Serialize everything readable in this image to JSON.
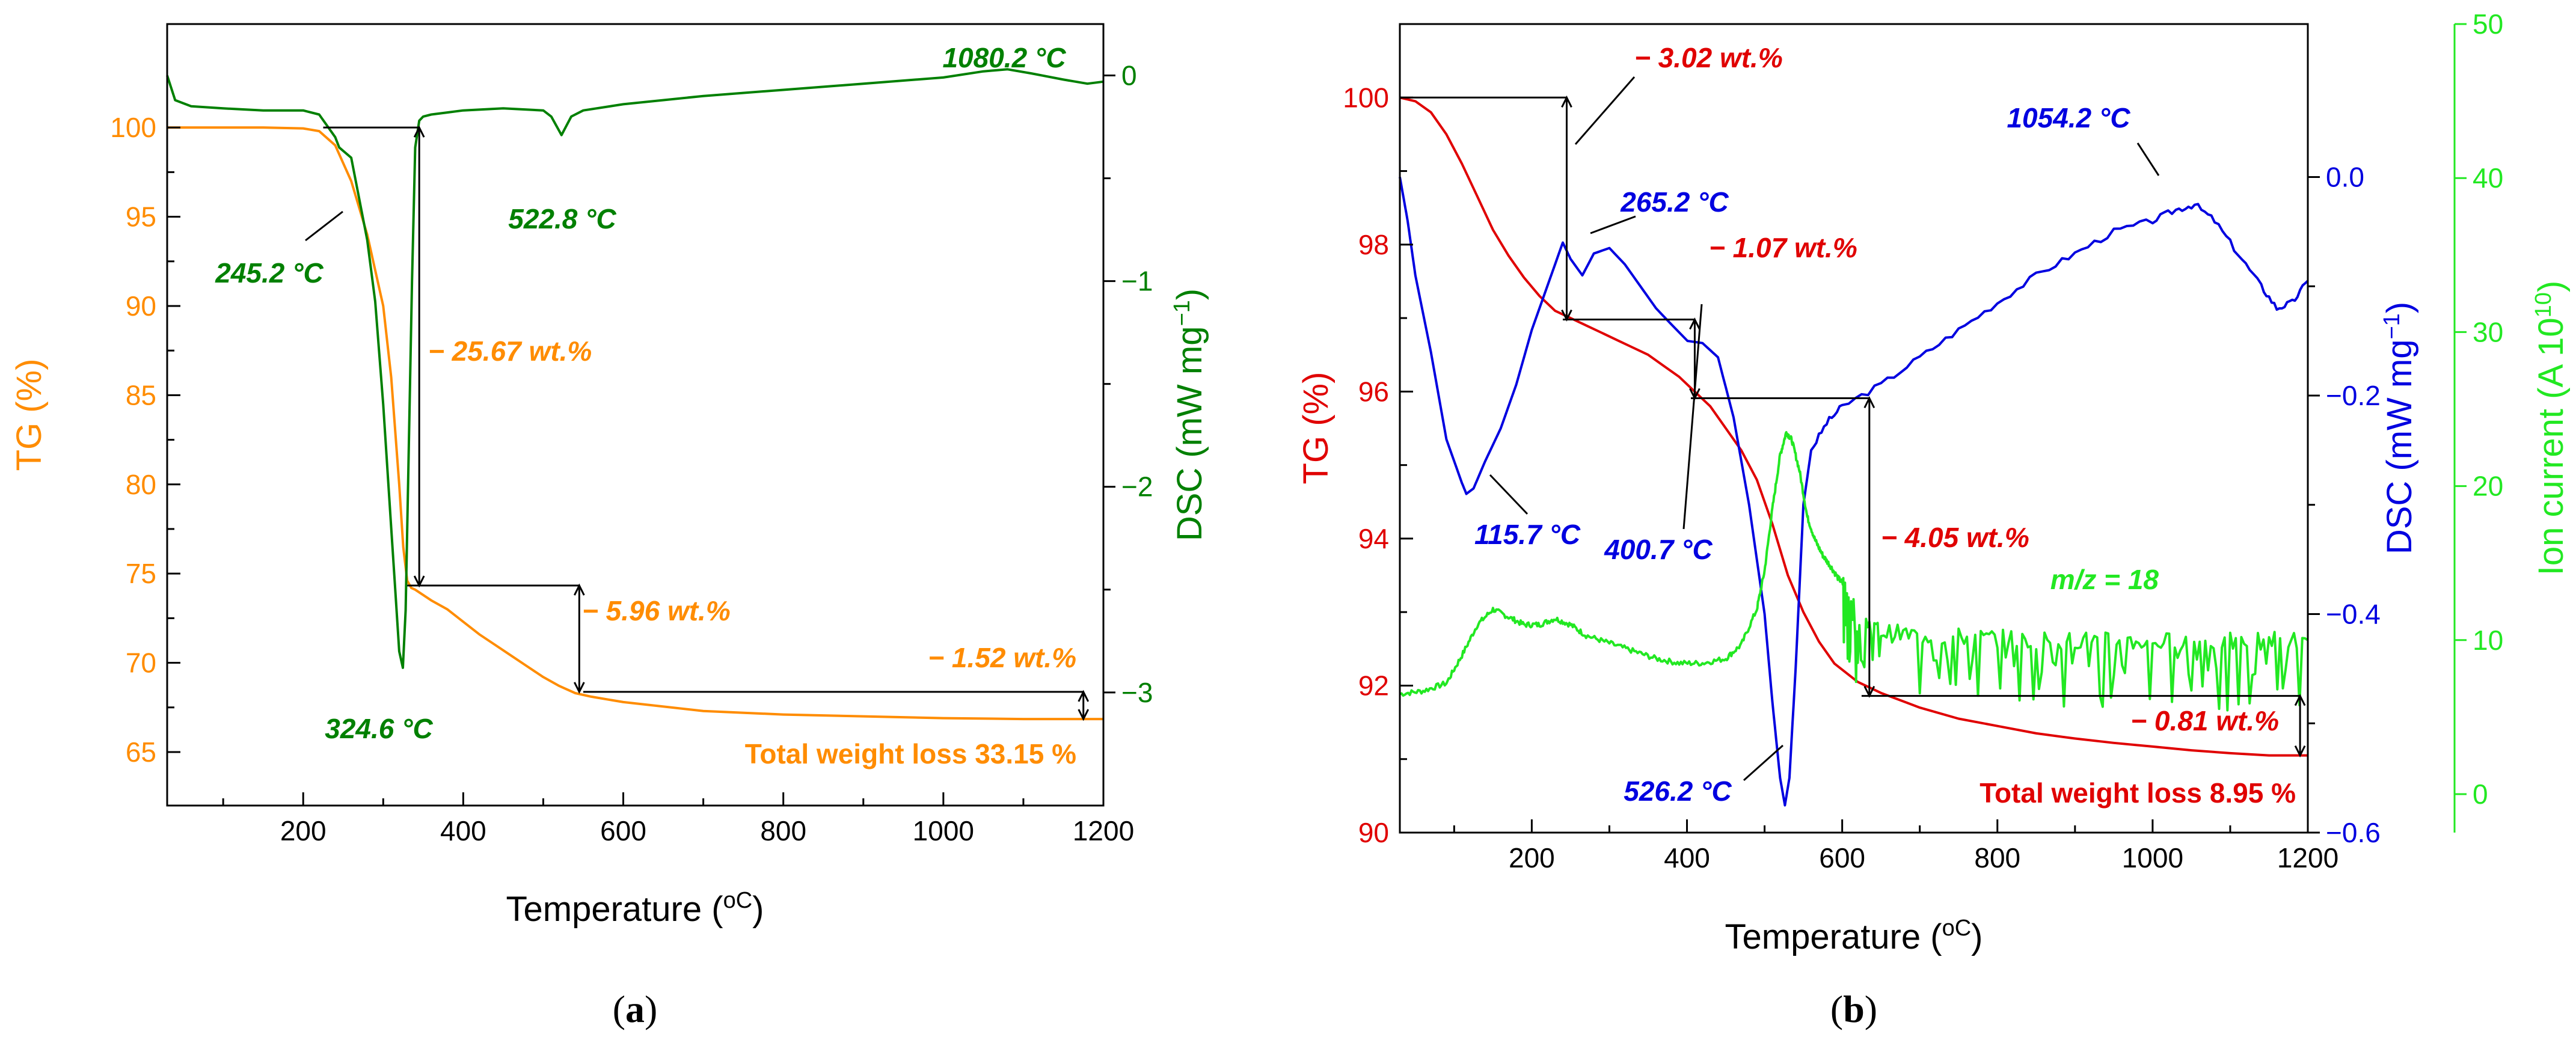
{
  "colors": {
    "tg_a": "#ff8c00",
    "dsc_a": "#008000",
    "tg_b": "#e00000",
    "dsc_b": "#0000e0",
    "ion_b": "#22e822",
    "frame": "#000000"
  },
  "chart_data": [
    {
      "type": "line",
      "panel": "(a)",
      "panel_letter": "a",
      "xlabel": "Temperature (",
      "xlabel_unit": "oC",
      "xlabel_suffix": ")",
      "xlim": [
        30,
        1200
      ],
      "xticks": [
        200,
        400,
        600,
        800,
        1000,
        1200
      ],
      "left_axis": {
        "label": "TG (%)",
        "ylim": [
          62,
          105.8
        ],
        "ticks": [
          65,
          70,
          75,
          80,
          85,
          90,
          95,
          100
        ]
      },
      "right_axis": {
        "label_pre": "DSC (mW mg",
        "label_sup": "−1",
        "label_post": ")",
        "ylim": [
          -3.55,
          0.25
        ],
        "ticks": [
          0,
          -1,
          -2,
          -3
        ],
        "tick_labels": [
          "0",
          "−1",
          "−2",
          "−3"
        ]
      },
      "series": [
        {
          "name": "TG",
          "axis": "left",
          "color_key": "tg_a",
          "x": [
            30,
            100,
            150,
            200,
            220,
            240,
            260,
            280,
            300,
            310,
            320,
            325,
            330,
            335,
            340,
            360,
            380,
            400,
            420,
            440,
            460,
            480,
            500,
            520,
            540,
            560,
            600,
            700,
            800,
            900,
            1000,
            1100,
            1200
          ],
          "y": [
            100,
            100,
            100,
            99.95,
            99.8,
            99,
            97,
            94,
            90,
            86,
            80,
            76.5,
            74.6,
            74.2,
            74.1,
            73.5,
            73,
            72.3,
            71.6,
            71,
            70.4,
            69.8,
            69.2,
            68.7,
            68.3,
            68.1,
            67.8,
            67.3,
            67.1,
            67.0,
            66.9,
            66.85,
            66.85
          ]
        },
        {
          "name": "DSC",
          "axis": "right",
          "color_key": "dsc_a",
          "x": [
            30,
            40,
            60,
            100,
            150,
            200,
            220,
            240,
            245,
            260,
            270,
            280,
            290,
            300,
            310,
            315,
            320,
            324.6,
            328,
            332,
            336,
            340,
            345,
            350,
            360,
            380,
            400,
            450,
            500,
            510,
            522.8,
            535,
            550,
            600,
            700,
            800,
            900,
            1000,
            1050,
            1080.2,
            1110,
            1150,
            1180,
            1200
          ],
          "y": [
            0,
            -0.12,
            -0.15,
            -0.16,
            -0.17,
            -0.17,
            -0.19,
            -0.3,
            -0.35,
            -0.4,
            -0.6,
            -0.8,
            -1.1,
            -1.6,
            -2.2,
            -2.5,
            -2.8,
            -2.88,
            -2.6,
            -1.8,
            -1.0,
            -0.35,
            -0.22,
            -0.2,
            -0.19,
            -0.18,
            -0.17,
            -0.16,
            -0.17,
            -0.2,
            -0.29,
            -0.2,
            -0.17,
            -0.14,
            -0.1,
            -0.07,
            -0.04,
            -0.01,
            0.02,
            0.03,
            0.01,
            -0.02,
            -0.04,
            -0.03
          ]
        }
      ],
      "annotations": [
        {
          "text": "1080.2 °C",
          "color_key": "dsc_a",
          "x": 1080.2,
          "axis": "right",
          "y": 0.03
        },
        {
          "text": "522.8 °C",
          "color_key": "dsc_a",
          "x": 522.8,
          "axis": "right",
          "y": -0.29
        },
        {
          "text": "245.2 °C",
          "color_key": "dsc_a",
          "x": 245.2,
          "axis": "right",
          "y": -0.35
        },
        {
          "text": "324.6 °C",
          "color_key": "dsc_a",
          "x": 324.6,
          "axis": "right",
          "y": -2.88
        },
        {
          "text": "− 25.67 wt.%",
          "color_key": "tg_a"
        },
        {
          "text": "− 5.96 wt.%",
          "color_key": "tg_a"
        },
        {
          "text": "− 1.52 wt.%",
          "color_key": "tg_a"
        }
      ],
      "total_text": "Total weight loss 33.15 %",
      "steps": [
        {
          "x_from": 225,
          "x_to": 345,
          "y_from": 100,
          "y_to": 74.33
        },
        {
          "x_from": 330,
          "x_to": 545,
          "y_from": 74.33,
          "y_to": 68.37
        },
        {
          "x_from": 550,
          "x_to": 1175,
          "y_from": 68.37,
          "y_to": 66.85
        }
      ]
    },
    {
      "type": "line",
      "panel": "(b)",
      "panel_letter": "b",
      "xlabel": "Temperature (",
      "xlabel_unit": "oC",
      "xlabel_suffix": ")",
      "xlim": [
        30,
        1200
      ],
      "xticks": [
        200,
        400,
        600,
        800,
        1000,
        1200
      ],
      "left_axis": {
        "label": "TG (%)",
        "ylim": [
          90,
          101
        ],
        "ticks": [
          90,
          92,
          94,
          96,
          98,
          100
        ]
      },
      "right_axis": {
        "label_pre": "DSC (mW mg",
        "label_sup": "−1",
        "label_post": ")",
        "ylim": [
          -0.6,
          0.14
        ],
        "ticks": [
          0,
          -0.2,
          -0.4,
          -0.6
        ],
        "tick_labels": [
          "0.0",
          "−0.2",
          "−0.4",
          "−0.6"
        ]
      },
      "far_axis": {
        "label_pre": "Ion current (A 10",
        "label_sup": "10",
        "label_post": ")",
        "ylim": [
          -2.5,
          50
        ],
        "ticks": [
          0,
          10,
          20,
          30,
          40,
          50
        ]
      },
      "series": [
        {
          "name": "TG",
          "axis": "left",
          "color_key": "tg_b",
          "x": [
            30,
            50,
            70,
            90,
            110,
            130,
            150,
            170,
            190,
            210,
            230,
            250,
            270,
            290,
            310,
            330,
            350,
            370,
            390,
            410,
            430,
            450,
            470,
            490,
            510,
            530,
            550,
            570,
            590,
            620,
            650,
            700,
            750,
            800,
            850,
            900,
            950,
            1000,
            1050,
            1100,
            1150,
            1200
          ],
          "y": [
            100,
            99.95,
            99.8,
            99.5,
            99.1,
            98.65,
            98.2,
            97.85,
            97.55,
            97.3,
            97.1,
            97.0,
            96.9,
            96.8,
            96.7,
            96.6,
            96.5,
            96.35,
            96.2,
            96.0,
            95.8,
            95.5,
            95.2,
            94.8,
            94.2,
            93.5,
            93.0,
            92.6,
            92.3,
            92.05,
            91.9,
            91.7,
            91.55,
            91.45,
            91.35,
            91.28,
            91.22,
            91.17,
            91.12,
            91.08,
            91.05,
            91.05
          ]
        },
        {
          "name": "DSC",
          "axis": "right",
          "color_key": "dsc_b",
          "x": [
            30,
            40,
            50,
            70,
            90,
            110,
            115.7,
            125,
            140,
            160,
            180,
            200,
            220,
            240,
            250,
            265.2,
            280,
            300,
            320,
            340,
            360,
            380,
            400.7,
            420,
            440,
            460,
            480,
            500,
            510,
            520,
            526.2,
            532,
            540,
            550,
            560,
            580,
            600,
            650,
            700,
            750,
            800,
            850,
            900,
            950,
            1000,
            1030,
            1054.2,
            1080,
            1110,
            1140,
            1160,
            1180,
            1200
          ],
          "y": [
            0.0,
            -0.04,
            -0.09,
            -0.16,
            -0.24,
            -0.28,
            -0.29,
            -0.285,
            -0.26,
            -0.23,
            -0.19,
            -0.14,
            -0.1,
            -0.06,
            -0.075,
            -0.09,
            -0.07,
            -0.065,
            -0.08,
            -0.1,
            -0.12,
            -0.135,
            -0.15,
            -0.152,
            -0.165,
            -0.22,
            -0.3,
            -0.4,
            -0.48,
            -0.55,
            -0.575,
            -0.55,
            -0.45,
            -0.3,
            -0.25,
            -0.225,
            -0.21,
            -0.19,
            -0.165,
            -0.14,
            -0.115,
            -0.09,
            -0.07,
            -0.05,
            -0.04,
            -0.03,
            -0.025,
            -0.04,
            -0.07,
            -0.1,
            -0.12,
            -0.115,
            -0.095
          ]
        },
        {
          "name": "m/z = 18",
          "axis": "far",
          "color_key": "ion_b",
          "x": [
            30,
            60,
            90,
            110,
            130,
            150,
            170,
            190,
            210,
            230,
            250,
            270,
            300,
            330,
            360,
            390,
            420,
            450,
            470,
            490,
            500,
            510,
            520,
            528,
            535,
            545,
            555,
            565,
            575,
            585,
            595,
            605,
            620,
            650,
            700,
            750,
            800,
            850,
            900,
            950,
            1000,
            1050,
            1100,
            1150,
            1200
          ],
          "y": [
            6.5,
            6.7,
            7.2,
            9.0,
            11.0,
            12.0,
            11.5,
            11.0,
            11.0,
            11.4,
            11.0,
            10.3,
            9.8,
            9.3,
            8.8,
            8.5,
            8.5,
            8.8,
            9.7,
            12.0,
            14.5,
            18.5,
            22.0,
            23.5,
            23.0,
            21.0,
            18.0,
            16.5,
            15.5,
            14.8,
            14.0,
            13.5,
            11.5,
            10.5,
            10.3,
            10.2,
            10.1,
            10.0,
            10.0,
            9.9,
            9.9,
            9.9,
            9.9,
            10.0,
            10.0
          ]
        }
      ],
      "annotations": [
        {
          "text": "− 3.02 wt.%",
          "color_key": "tg_b"
        },
        {
          "text": "265.2 °C",
          "color_key": "dsc_b",
          "x": 265.2,
          "axis": "right",
          "y": -0.09
        },
        {
          "text": "− 1.07 wt.%",
          "color_key": "tg_b"
        },
        {
          "text": "1054.2 °C",
          "color_key": "dsc_b",
          "x": 1054.2,
          "axis": "right",
          "y": -0.025
        },
        {
          "text": "115.7 °C",
          "color_key": "dsc_b",
          "x": 115.7,
          "axis": "right",
          "y": -0.29
        },
        {
          "text": "400.7 °C",
          "color_key": "dsc_b",
          "x": 400.7,
          "axis": "right",
          "y": -0.15
        },
        {
          "text": "− 4.05 wt.%",
          "color_key": "tg_b"
        },
        {
          "text": "m/z = 18",
          "color_key": "ion_b"
        },
        {
          "text": "− 0.81 wt.%",
          "color_key": "tg_b"
        },
        {
          "text": "526.2 °C",
          "color_key": "dsc_b",
          "x": 526.2,
          "axis": "right",
          "y": -0.575
        }
      ],
      "total_text": "Total weight loss 8.95 %",
      "steps": [
        {
          "x_from": 30,
          "x_to": 245,
          "y_from": 100,
          "y_to": 96.98
        },
        {
          "x_from": 240,
          "x_to": 410,
          "y_from": 96.98,
          "y_to": 95.91
        },
        {
          "x_from": 405,
          "x_to": 635,
          "y_from": 95.91,
          "y_to": 91.86
        },
        {
          "x_from": 625,
          "x_to": 1190,
          "y_from": 91.86,
          "y_to": 91.05
        }
      ]
    }
  ]
}
